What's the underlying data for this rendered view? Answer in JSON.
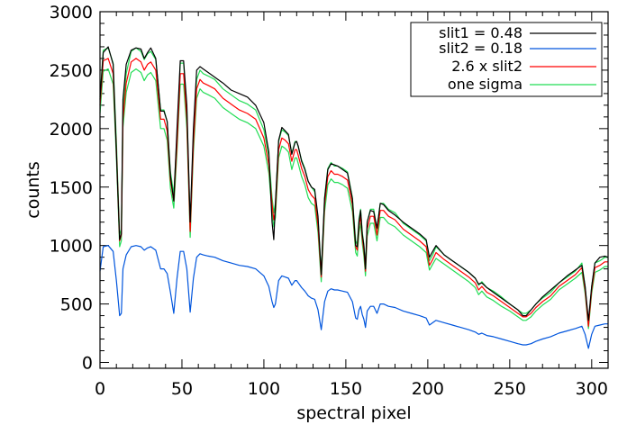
{
  "chart_data": {
    "type": "line",
    "xlabel": "spectral pixel",
    "ylabel": "counts",
    "xlim": [
      0,
      310
    ],
    "ylim": [
      -50,
      3000
    ],
    "xticks": [
      0,
      50,
      100,
      150,
      200,
      250,
      300
    ],
    "yticks": [
      0,
      500,
      1000,
      1500,
      2000,
      2500,
      3000
    ],
    "grid": false,
    "legend_position": "top-right",
    "series": [
      {
        "name": "slit1 = 0.48",
        "color": "#000000",
        "x": [
          0,
          2,
          5,
          8,
          10,
          12,
          13,
          14,
          16,
          19,
          22,
          25,
          27,
          29,
          31,
          34,
          37,
          39,
          41,
          43,
          45,
          47,
          49,
          51,
          53,
          55,
          57,
          59,
          61,
          63,
          66,
          70,
          75,
          80,
          85,
          90,
          95,
          100,
          103,
          105,
          106,
          107,
          109,
          111,
          113,
          115,
          117,
          119,
          120,
          121,
          123,
          125,
          127,
          129,
          131,
          133,
          135,
          137,
          139,
          141,
          143,
          145,
          148,
          151,
          154,
          156,
          157,
          158,
          159,
          160,
          161,
          162,
          163,
          165,
          167,
          169,
          170,
          171,
          173,
          176,
          180,
          185,
          190,
          195,
          199,
          201,
          203,
          205,
          210,
          215,
          220,
          225,
          229,
          231,
          233,
          236,
          240,
          245,
          250,
          255,
          258,
          260,
          263,
          266,
          270,
          275,
          280,
          285,
          290,
          294,
          296,
          298,
          300,
          302,
          305,
          308,
          310
        ],
        "values": [
          2250,
          2650,
          2700,
          2550,
          1800,
          1050,
          1100,
          2250,
          2550,
          2670,
          2690,
          2680,
          2600,
          2650,
          2690,
          2600,
          2150,
          2150,
          2060,
          1600,
          1380,
          2000,
          2580,
          2580,
          2200,
          1200,
          2000,
          2500,
          2530,
          2510,
          2480,
          2440,
          2390,
          2330,
          2300,
          2270,
          2200,
          2050,
          1800,
          1200,
          1050,
          1350,
          1900,
          2010,
          1980,
          1950,
          1780,
          1880,
          1890,
          1850,
          1720,
          1650,
          1550,
          1500,
          1480,
          1250,
          750,
          1400,
          1650,
          1700,
          1690,
          1680,
          1650,
          1620,
          1400,
          1000,
          990,
          1200,
          1300,
          1100,
          1000,
          800,
          1200,
          1300,
          1290,
          1150,
          1250,
          1360,
          1350,
          1300,
          1260,
          1200,
          1150,
          1100,
          1050,
          900,
          950,
          1000,
          920,
          870,
          820,
          770,
          720,
          670,
          680,
          640,
          600,
          550,
          500,
          450,
          400,
          400,
          450,
          500,
          560,
          620,
          680,
          740,
          790,
          830,
          650,
          360,
          650,
          850,
          900,
          910,
          900
        ]
      },
      {
        "name": "slit2 = 0.18",
        "color": "#0055dd",
        "x": [
          0,
          2,
          5,
          8,
          10,
          12,
          13,
          14,
          16,
          19,
          22,
          25,
          27,
          29,
          31,
          34,
          37,
          39,
          41,
          43,
          45,
          47,
          49,
          51,
          53,
          55,
          57,
          59,
          61,
          63,
          66,
          70,
          75,
          80,
          85,
          90,
          95,
          100,
          103,
          105,
          106,
          107,
          109,
          111,
          113,
          115,
          117,
          119,
          120,
          121,
          123,
          125,
          127,
          129,
          131,
          133,
          135,
          137,
          139,
          141,
          143,
          145,
          148,
          151,
          154,
          156,
          157,
          158,
          159,
          160,
          161,
          162,
          163,
          165,
          167,
          169,
          170,
          171,
          173,
          176,
          180,
          185,
          190,
          195,
          199,
          201,
          203,
          205,
          210,
          215,
          220,
          225,
          229,
          231,
          233,
          236,
          240,
          245,
          250,
          255,
          258,
          260,
          263,
          266,
          270,
          275,
          280,
          285,
          290,
          294,
          296,
          298,
          300,
          302,
          305,
          308,
          310
        ],
        "values": [
          780,
          990,
          1000,
          950,
          700,
          400,
          420,
          800,
          920,
          990,
          1000,
          990,
          960,
          980,
          990,
          960,
          800,
          800,
          760,
          600,
          420,
          720,
          950,
          950,
          800,
          430,
          720,
          900,
          930,
          920,
          910,
          900,
          870,
          850,
          830,
          820,
          800,
          740,
          650,
          520,
          470,
          500,
          700,
          740,
          730,
          720,
          660,
          700,
          700,
          680,
          640,
          610,
          570,
          550,
          540,
          450,
          280,
          520,
          610,
          630,
          620,
          620,
          610,
          600,
          520,
          380,
          370,
          450,
          480,
          410,
          370,
          300,
          440,
          480,
          480,
          420,
          460,
          500,
          500,
          480,
          470,
          440,
          420,
          400,
          380,
          320,
          340,
          360,
          340,
          320,
          300,
          280,
          260,
          240,
          250,
          230,
          220,
          200,
          180,
          160,
          150,
          150,
          160,
          180,
          200,
          220,
          250,
          270,
          290,
          310,
          240,
          120,
          240,
          310,
          320,
          330,
          330
        ]
      },
      {
        "name": "2.6 x slit2",
        "color": "#ff0000",
        "x": [
          0,
          2,
          5,
          8,
          10,
          12,
          13,
          14,
          16,
          19,
          22,
          25,
          27,
          29,
          31,
          34,
          37,
          39,
          41,
          43,
          45,
          47,
          49,
          51,
          53,
          55,
          57,
          59,
          61,
          63,
          66,
          70,
          75,
          80,
          85,
          90,
          95,
          100,
          103,
          105,
          106,
          107,
          109,
          111,
          113,
          115,
          117,
          119,
          120,
          121,
          123,
          125,
          127,
          129,
          131,
          133,
          135,
          137,
          139,
          141,
          143,
          145,
          148,
          151,
          154,
          156,
          157,
          158,
          159,
          160,
          161,
          162,
          163,
          165,
          167,
          169,
          170,
          171,
          173,
          176,
          180,
          185,
          190,
          195,
          199,
          201,
          203,
          205,
          210,
          215,
          220,
          225,
          229,
          231,
          233,
          236,
          240,
          245,
          250,
          255,
          258,
          260,
          263,
          266,
          270,
          275,
          280,
          285,
          290,
          294,
          296,
          298,
          300,
          302,
          305,
          308,
          310
        ],
        "values": [
          2200,
          2580,
          2600,
          2470,
          1820,
          1040,
          1090,
          2080,
          2390,
          2570,
          2600,
          2570,
          2500,
          2550,
          2570,
          2500,
          2080,
          2080,
          1980,
          1560,
          1380,
          1870,
          2470,
          2470,
          2080,
          1120,
          1870,
          2340,
          2420,
          2390,
          2370,
          2340,
          2260,
          2210,
          2160,
          2130,
          2080,
          1920,
          1690,
          1350,
          1220,
          1300,
          1820,
          1920,
          1900,
          1870,
          1720,
          1820,
          1820,
          1770,
          1660,
          1590,
          1480,
          1430,
          1400,
          1170,
          730,
          1350,
          1590,
          1640,
          1610,
          1610,
          1590,
          1560,
          1350,
          990,
          960,
          1170,
          1250,
          1070,
          960,
          780,
          1140,
          1250,
          1250,
          1090,
          1200,
          1300,
          1300,
          1250,
          1220,
          1140,
          1090,
          1040,
          990,
          830,
          880,
          940,
          880,
          830,
          780,
          730,
          680,
          620,
          650,
          600,
          570,
          520,
          470,
          420,
          390,
          390,
          420,
          470,
          520,
          570,
          650,
          700,
          750,
          810,
          620,
          310,
          620,
          810,
          830,
          860,
          860
        ]
      },
      {
        "name": "one sigma",
        "color": "#22dd55",
        "x": [
          0,
          2,
          5,
          8,
          10,
          12,
          13,
          14,
          16,
          19,
          22,
          25,
          27,
          29,
          31,
          34,
          37,
          39,
          41,
          43,
          45,
          47,
          49,
          51,
          53,
          55,
          57,
          59,
          61,
          63,
          66,
          70,
          75,
          80,
          85,
          90,
          95,
          100,
          103,
          105,
          106,
          107,
          109,
          111,
          113,
          115,
          117,
          119,
          120,
          121,
          123,
          125,
          127,
          129,
          131,
          133,
          135,
          137,
          139,
          141,
          143,
          145,
          148,
          151,
          154,
          156,
          157,
          158,
          159,
          160,
          161,
          162,
          163,
          165,
          167,
          169,
          170,
          171,
          173,
          176,
          180,
          185,
          190,
          195,
          199,
          201,
          203,
          205,
          210,
          215,
          220,
          225,
          229,
          231,
          233,
          236,
          240,
          245,
          250,
          255,
          258,
          260,
          263,
          266,
          270,
          275,
          280,
          285,
          290,
          294,
          296,
          298,
          300,
          302,
          305,
          308,
          310
        ],
        "values": [
          2130,
          2490,
          2510,
          2380,
          1750,
          990,
          1040,
          2010,
          2310,
          2480,
          2510,
          2480,
          2410,
          2460,
          2480,
          2410,
          2000,
          2000,
          1900,
          1490,
          1320,
          1800,
          2380,
          2380,
          2000,
          1070,
          1800,
          2260,
          2340,
          2310,
          2290,
          2260,
          2180,
          2130,
          2080,
          2050,
          2000,
          1850,
          1620,
          1290,
          1160,
          1240,
          1750,
          1850,
          1830,
          1800,
          1650,
          1750,
          1750,
          1700,
          1590,
          1520,
          1410,
          1360,
          1340,
          1110,
          690,
          1290,
          1520,
          1570,
          1540,
          1540,
          1520,
          1490,
          1290,
          940,
          910,
          1110,
          1190,
          1020,
          910,
          740,
          1080,
          1190,
          1190,
          1040,
          1140,
          1240,
          1240,
          1190,
          1160,
          1090,
          1040,
          990,
          940,
          790,
          840,
          890,
          840,
          790,
          740,
          690,
          640,
          580,
          610,
          560,
          530,
          480,
          440,
          390,
          360,
          360,
          390,
          440,
          490,
          540,
          620,
          670,
          720,
          770,
          590,
          290,
          590,
          770,
          790,
          820,
          820
        ]
      },
      {
        "name": "",
        "color": "#22dd55",
        "x": [
          0,
          2,
          5,
          8,
          10,
          12,
          13,
          14,
          16,
          19,
          22,
          25,
          27,
          29,
          31,
          34,
          37,
          39,
          41,
          43,
          45,
          47,
          49,
          51,
          53,
          55,
          57,
          59,
          61,
          63,
          66,
          70,
          75,
          80,
          85,
          90,
          95,
          100,
          103,
          105,
          106,
          107,
          109,
          111,
          113,
          115,
          117,
          119,
          120,
          121,
          123,
          125,
          127,
          129,
          131,
          133,
          135,
          137,
          139,
          141,
          143,
          145,
          148,
          151,
          154,
          156,
          157,
          158,
          159,
          160,
          161,
          162,
          163,
          165,
          167,
          169,
          170,
          171,
          173,
          176,
          180,
          185,
          190,
          195,
          199,
          201,
          203,
          205,
          210,
          215,
          220,
          225,
          229,
          231,
          233,
          236,
          240,
          245,
          250,
          255,
          258,
          260,
          263,
          266,
          270,
          275,
          280,
          285,
          290,
          294,
          296,
          298,
          300,
          302,
          305,
          308,
          310
        ],
        "values": [
          2270,
          2670,
          2690,
          2560,
          1890,
          1090,
          1140,
          2150,
          2470,
          2660,
          2690,
          2660,
          2590,
          2640,
          2660,
          2590,
          2160,
          2160,
          2060,
          1630,
          1440,
          1940,
          2560,
          2560,
          2160,
          1170,
          1940,
          2420,
          2500,
          2470,
          2450,
          2420,
          2340,
          2290,
          2240,
          2210,
          2160,
          1990,
          1760,
          1410,
          1280,
          1360,
          1890,
          1990,
          1970,
          1940,
          1790,
          1890,
          1890,
          1840,
          1730,
          1660,
          1550,
          1500,
          1460,
          1230,
          770,
          1410,
          1660,
          1710,
          1680,
          1680,
          1660,
          1630,
          1410,
          1040,
          1010,
          1230,
          1310,
          1120,
          1010,
          820,
          1200,
          1310,
          1310,
          1140,
          1260,
          1360,
          1360,
          1310,
          1280,
          1190,
          1140,
          1090,
          1040,
          870,
          920,
          990,
          920,
          870,
          820,
          770,
          720,
          660,
          690,
          640,
          610,
          560,
          500,
          450,
          420,
          420,
          450,
          500,
          550,
          600,
          680,
          730,
          780,
          850,
          650,
          330,
          650,
          850,
          870,
          900,
          900
        ]
      }
    ]
  }
}
